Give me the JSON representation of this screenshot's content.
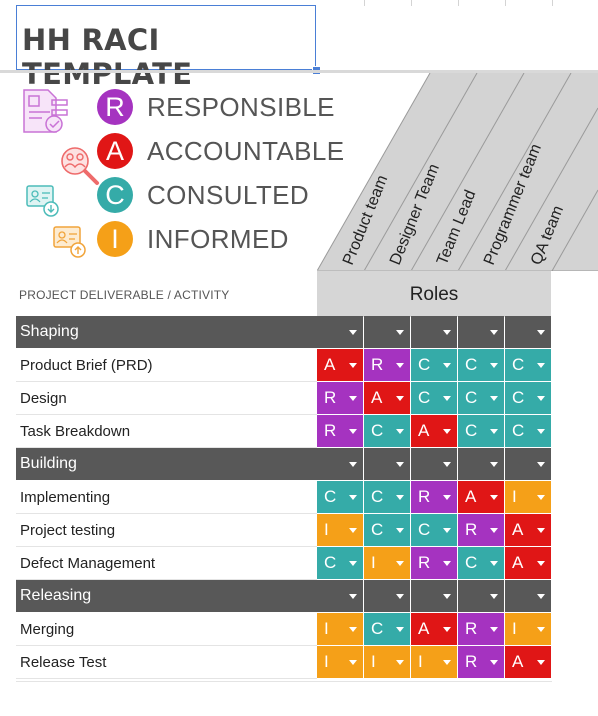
{
  "title": "HH RACI TEMPLATE",
  "colors": {
    "R": "#a533c0",
    "A": "#e01616",
    "C": "#35aba8",
    "I": "#f5a018",
    "section": "#585858",
    "roles_header": "#d6d6d6"
  },
  "legend": [
    {
      "letter": "R",
      "label": "RESPONSIBLE",
      "color": "#a533c0"
    },
    {
      "letter": "A",
      "label": "ACCOUNTABLE",
      "color": "#e01616"
    },
    {
      "letter": "C",
      "label": "CONSULTED",
      "color": "#35aba8"
    },
    {
      "letter": "I",
      "label": "INFORMED",
      "color": "#f5a018"
    }
  ],
  "legend_icons": [
    "document-check-icon",
    "magnifier-people-icon",
    "contact-card-download-icon",
    "contact-card-upload-icon"
  ],
  "roles": [
    "Product team",
    "Designer Team",
    "Team Lead",
    "Programmer team",
    "QA team"
  ],
  "activity_header": "PROJECT DELIVERABLE / ACTIVITY",
  "roles_header": "Roles",
  "rows": [
    {
      "type": "section",
      "label": "Shaping",
      "values": [
        "",
        "",
        "",
        "",
        ""
      ]
    },
    {
      "type": "item",
      "label": "Product Brief (PRD)",
      "values": [
        "A",
        "R",
        "C",
        "C",
        "C"
      ]
    },
    {
      "type": "item",
      "label": "Design",
      "values": [
        "R",
        "A",
        "C",
        "C",
        "C"
      ]
    },
    {
      "type": "item",
      "label": "Task Breakdown",
      "values": [
        "R",
        "C",
        "A",
        "C",
        "C"
      ]
    },
    {
      "type": "section",
      "label": "Building",
      "values": [
        "",
        "",
        "",
        "",
        ""
      ]
    },
    {
      "type": "item",
      "label": "Implementing",
      "values": [
        "C",
        "C",
        "R",
        "A",
        "I"
      ]
    },
    {
      "type": "item",
      "label": "Project testing",
      "values": [
        "I",
        "C",
        "C",
        "R",
        "A"
      ]
    },
    {
      "type": "item",
      "label": "Defect Management",
      "values": [
        "C",
        "I",
        "R",
        "C",
        "A"
      ]
    },
    {
      "type": "section",
      "label": "Releasing",
      "values": [
        "",
        "",
        "",
        "",
        ""
      ]
    },
    {
      "type": "item",
      "label": "Merging",
      "values": [
        "I",
        "C",
        "A",
        "R",
        "I"
      ]
    },
    {
      "type": "item",
      "label": "Release Test",
      "values": [
        "I",
        "I",
        "I",
        "R",
        "A"
      ]
    }
  ]
}
